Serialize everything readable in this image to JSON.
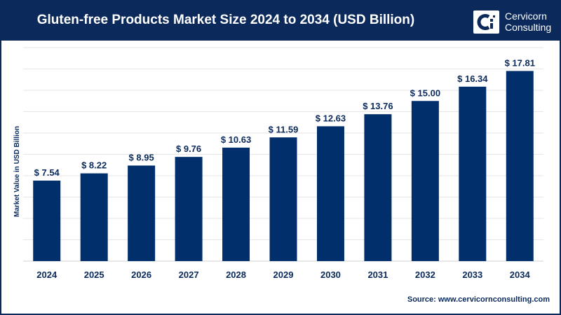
{
  "header": {
    "title": "Gluten-free Products Market Size 2024 to 2034 (USD Billion)",
    "brand_line1": "Cervicorn",
    "brand_line2": "Consulting"
  },
  "source": "Source: www.cervicornconsulting.com",
  "colors": {
    "bar": "#002f6c",
    "header": "#0b2a5b",
    "grid": "#e6e6e6"
  },
  "chart_data": {
    "type": "bar",
    "title": "Gluten-free Products Market Size 2024 to 2034 (USD Billion)",
    "xlabel": "",
    "ylabel": "Market Value in USD Billion",
    "categories": [
      "2024",
      "2025",
      "2026",
      "2027",
      "2028",
      "2029",
      "2030",
      "2031",
      "2032",
      "2033",
      "2034"
    ],
    "values": [
      7.54,
      8.22,
      8.95,
      9.76,
      10.63,
      11.59,
      12.63,
      13.76,
      15.0,
      16.34,
      17.81
    ],
    "data_labels": [
      "$ 7.54",
      "$ 8.22",
      "$ 8.95",
      "$ 9.76",
      "$ 10.63",
      "$ 11.59",
      "$ 12.63",
      "$ 13.76",
      "$ 15.00",
      "$ 16.34",
      "$ 17.81"
    ],
    "ylim": [
      0,
      20
    ],
    "grid": true,
    "legend": "none"
  }
}
